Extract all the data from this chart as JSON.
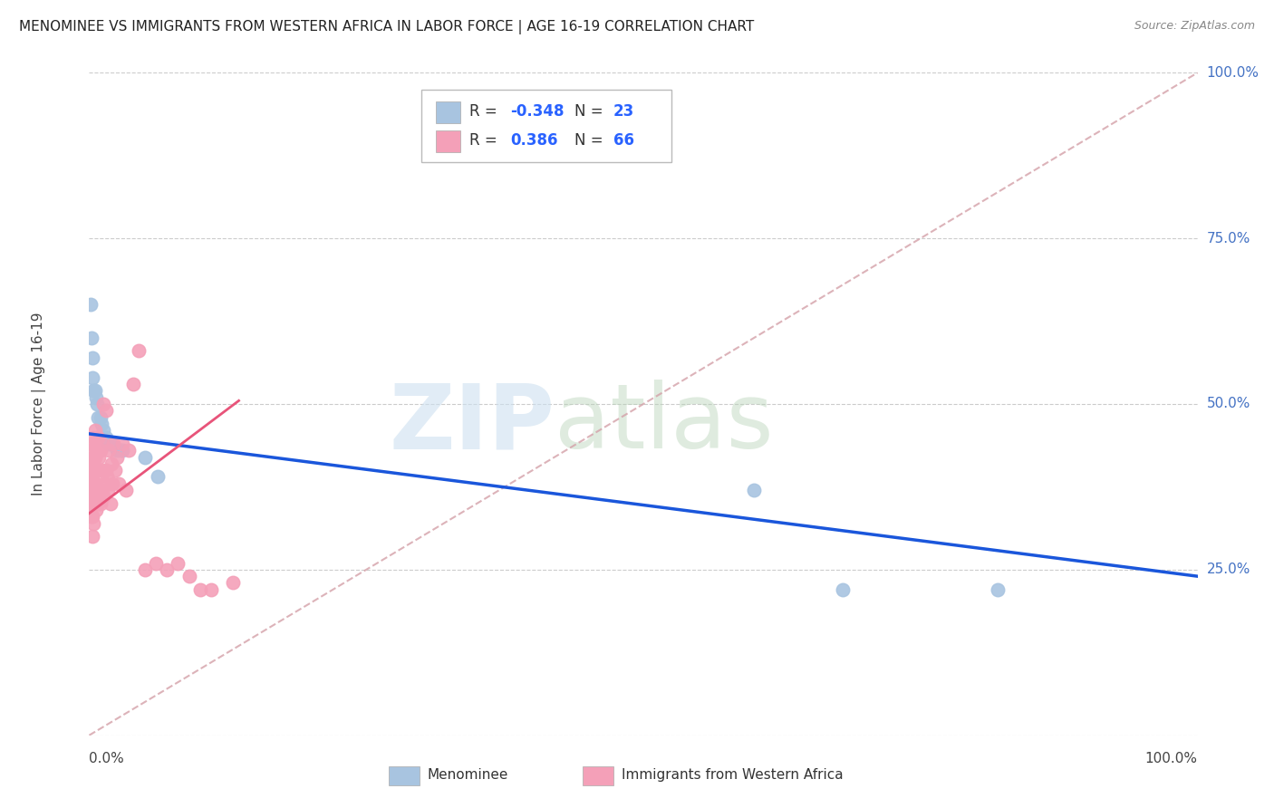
{
  "title": "MENOMINEE VS IMMIGRANTS FROM WESTERN AFRICA IN LABOR FORCE | AGE 16-19 CORRELATION CHART",
  "source": "Source: ZipAtlas.com",
  "ylabel": "In Labor Force | Age 16-19",
  "menominee_R": -0.348,
  "menominee_N": 23,
  "immigrants_R": 0.386,
  "immigrants_N": 66,
  "menominee_color": "#a8c4e0",
  "immigrants_color": "#f4a0b8",
  "menominee_line_color": "#1a56db",
  "immigrants_line_color": "#e8547a",
  "diagonal_color": "#d4a0a8",
  "menominee_x": [
    0.001,
    0.002,
    0.003,
    0.003,
    0.004,
    0.005,
    0.006,
    0.007,
    0.008,
    0.01,
    0.011,
    0.013,
    0.015,
    0.018,
    0.02,
    0.025,
    0.028,
    0.03,
    0.05,
    0.062,
    0.6,
    0.68,
    0.82
  ],
  "menominee_y": [
    0.65,
    0.6,
    0.57,
    0.54,
    0.52,
    0.52,
    0.51,
    0.5,
    0.48,
    0.48,
    0.47,
    0.46,
    0.45,
    0.44,
    0.44,
    0.43,
    0.43,
    0.43,
    0.42,
    0.39,
    0.37,
    0.22,
    0.22
  ],
  "immigrants_x": [
    0.001,
    0.001,
    0.001,
    0.001,
    0.002,
    0.002,
    0.002,
    0.002,
    0.002,
    0.003,
    0.003,
    0.003,
    0.003,
    0.003,
    0.004,
    0.004,
    0.004,
    0.004,
    0.005,
    0.005,
    0.005,
    0.005,
    0.006,
    0.006,
    0.006,
    0.007,
    0.007,
    0.007,
    0.008,
    0.008,
    0.008,
    0.009,
    0.009,
    0.01,
    0.01,
    0.011,
    0.012,
    0.012,
    0.013,
    0.013,
    0.014,
    0.015,
    0.015,
    0.016,
    0.017,
    0.018,
    0.019,
    0.02,
    0.021,
    0.022,
    0.023,
    0.025,
    0.027,
    0.03,
    0.033,
    0.036,
    0.04,
    0.045,
    0.05,
    0.06,
    0.07,
    0.08,
    0.09,
    0.1,
    0.11,
    0.13
  ],
  "immigrants_y": [
    0.35,
    0.38,
    0.4,
    0.43,
    0.33,
    0.36,
    0.38,
    0.41,
    0.44,
    0.3,
    0.33,
    0.36,
    0.39,
    0.42,
    0.32,
    0.35,
    0.38,
    0.45,
    0.35,
    0.38,
    0.42,
    0.46,
    0.34,
    0.38,
    0.43,
    0.36,
    0.4,
    0.45,
    0.35,
    0.4,
    0.45,
    0.36,
    0.42,
    0.35,
    0.43,
    0.4,
    0.37,
    0.44,
    0.36,
    0.5,
    0.38,
    0.4,
    0.49,
    0.39,
    0.37,
    0.43,
    0.35,
    0.41,
    0.38,
    0.44,
    0.4,
    0.42,
    0.38,
    0.44,
    0.37,
    0.43,
    0.53,
    0.58,
    0.25,
    0.26,
    0.25,
    0.26,
    0.24,
    0.22,
    0.22,
    0.23
  ],
  "xlim": [
    0.0,
    1.0
  ],
  "ylim": [
    0.0,
    1.0
  ],
  "background_color": "#ffffff",
  "grid_color": "#cccccc"
}
